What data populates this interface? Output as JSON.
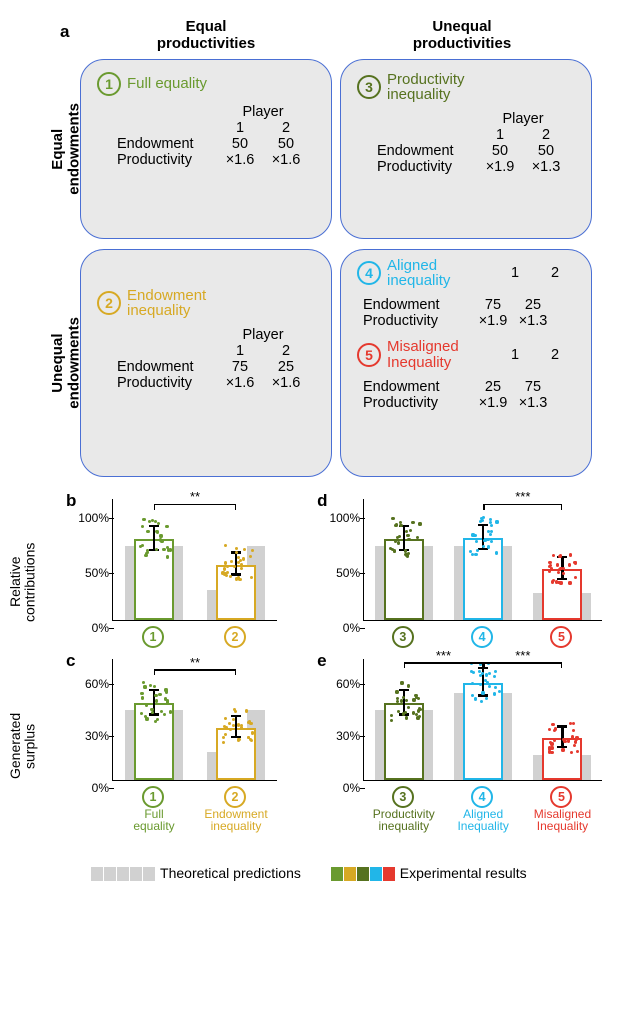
{
  "colors": {
    "c1": "#6a9a2f",
    "c2": "#d7a924",
    "c3": "#56721f",
    "c4": "#21b6e8",
    "c5": "#e5392e",
    "theory": "#d1d1d1",
    "box_border": "#4a6fd4",
    "box_bg": "#e9e9e9"
  },
  "panelA": {
    "letter": "a",
    "col_headers": [
      "Equal\nproductivities",
      "Unequal\nproductivities"
    ],
    "row_headers": [
      "Equal\nendowments",
      "Unequal\nendowments"
    ],
    "player_label": "Player",
    "row_labels": [
      "Endowment",
      "Productivity"
    ],
    "conditions": [
      {
        "n": "1",
        "title": "Full equality",
        "color": "#6a9a2f",
        "p1": {
          "end": "50",
          "prod": "×1.6"
        },
        "p2": {
          "end": "50",
          "prod": "×1.6"
        }
      },
      {
        "n": "2",
        "title": "Endowment\ninequality",
        "color": "#d7a924",
        "p1": {
          "end": "75",
          "prod": "×1.6"
        },
        "p2": {
          "end": "25",
          "prod": "×1.6"
        }
      },
      {
        "n": "3",
        "title": "Productivity\ninequality",
        "color": "#56721f",
        "p1": {
          "end": "50",
          "prod": "×1.9"
        },
        "p2": {
          "end": "50",
          "prod": "×1.3"
        }
      },
      {
        "n": "4",
        "title": "Aligned\ninequality",
        "color": "#21b6e8",
        "p1": {
          "end": "75",
          "prod": "×1.9"
        },
        "p2": {
          "end": "25",
          "prod": "×1.3"
        }
      },
      {
        "n": "5",
        "title": "Misaligned\nInequality",
        "color": "#e5392e",
        "p1": {
          "end": "25",
          "prod": "×1.9"
        },
        "p2": {
          "end": "75",
          "prod": "×1.3"
        }
      }
    ]
  },
  "charts": {
    "row_ylabels": [
      "Relative\ncontributions",
      "Generated\nsurplus"
    ],
    "panels": {
      "b": {
        "letter": "b",
        "ylim": [
          0,
          110
        ],
        "yticks": [
          0,
          50,
          100
        ],
        "yticklabels": [
          "0%",
          "50%",
          "100%"
        ],
        "bars": [
          {
            "cond": 1,
            "color": "#6a9a2f",
            "theory_l": 67,
            "theory_r": 67,
            "exp": 73,
            "err": 11
          },
          {
            "cond": 2,
            "color": "#d7a924",
            "theory_l": 27,
            "theory_r": 67,
            "exp": 50,
            "err": 10
          }
        ],
        "sig": [
          {
            "from": 0,
            "to": 1,
            "label": "**",
            "y": 104
          }
        ]
      },
      "c": {
        "letter": "c",
        "ylim": [
          0,
          70
        ],
        "yticks": [
          0,
          30,
          60
        ],
        "yticklabels": [
          "0%",
          "30%",
          "60%"
        ],
        "bars": [
          {
            "cond": 1,
            "color": "#6a9a2f",
            "theory_l": 40,
            "theory_r": 40,
            "exp": 44,
            "err": 7,
            "xlabel": "Full\nequality"
          },
          {
            "cond": 2,
            "color": "#d7a924",
            "theory_l": 16,
            "theory_r": 40,
            "exp": 30,
            "err": 6,
            "xlabel": "Endowment\ninequality"
          }
        ],
        "sig": [
          {
            "from": 0,
            "to": 1,
            "label": "**",
            "y": 63
          }
        ]
      },
      "d": {
        "letter": "d",
        "ylim": [
          0,
          110
        ],
        "yticks": [
          0,
          50,
          100
        ],
        "yticklabels": [
          "0%",
          "50%",
          "100%"
        ],
        "bars": [
          {
            "cond": 3,
            "color": "#56721f",
            "theory_l": 67,
            "theory_r": 67,
            "exp": 73,
            "err": 11
          },
          {
            "cond": 4,
            "color": "#21b6e8",
            "theory_l": 67,
            "theory_r": 67,
            "exp": 74,
            "err": 11
          },
          {
            "cond": 5,
            "color": "#e5392e",
            "theory_l": 24,
            "theory_r": 24,
            "exp": 46,
            "err": 10
          }
        ],
        "sig": [
          {
            "from": 1,
            "to": 2,
            "label": "***",
            "y": 104
          }
        ]
      },
      "e": {
        "letter": "e",
        "ylim": [
          0,
          70
        ],
        "yticks": [
          0,
          30,
          60
        ],
        "yticklabels": [
          "0%",
          "30%",
          "60%"
        ],
        "bars": [
          {
            "cond": 3,
            "color": "#56721f",
            "theory_l": 40,
            "theory_r": 40,
            "exp": 44,
            "err": 7,
            "xlabel": "Productivity\ninequality"
          },
          {
            "cond": 4,
            "color": "#21b6e8",
            "theory_l": 50,
            "theory_r": 50,
            "exp": 56,
            "err": 8,
            "xlabel": "Aligned\nInequality"
          },
          {
            "cond": 5,
            "color": "#e5392e",
            "theory_l": 14,
            "theory_r": 14,
            "exp": 24,
            "err": 6,
            "xlabel": "Misaligned\nInequality"
          }
        ],
        "sig": [
          {
            "from": 0,
            "to": 1,
            "label": "***",
            "y": 67
          },
          {
            "from": 1,
            "to": 2,
            "label": "***",
            "y": 67
          }
        ]
      }
    },
    "bottom_xlabels_on": [
      "c",
      "e"
    ]
  },
  "legend": {
    "theory": "Theoretical predictions",
    "exp": "Experimental results",
    "exp_colors": [
      "#6a9a2f",
      "#d7a924",
      "#56721f",
      "#21b6e8",
      "#e5392e"
    ]
  }
}
